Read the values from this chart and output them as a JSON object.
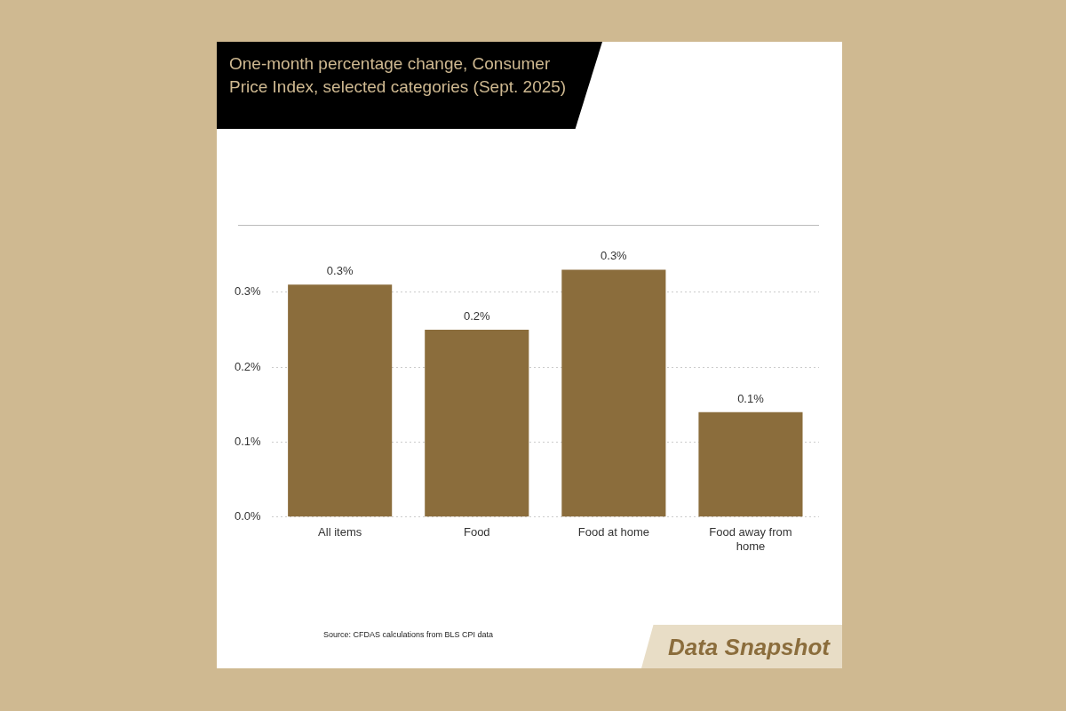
{
  "chart_data": {
    "type": "bar",
    "title": "One-month percentage change, Consumer Price Index, selected categories (Sept. 2025)",
    "categories": [
      "All items",
      "Food",
      "Food at home",
      "Food away from home"
    ],
    "values": [
      0.31,
      0.25,
      0.33,
      0.14
    ],
    "value_labels": [
      "0.3%",
      "0.2%",
      "0.3%",
      "0.1%"
    ],
    "color": "#8b6d3c",
    "ylim": [
      0,
      0.39
    ],
    "yticks": [
      {
        "value": 0,
        "label": "0.0%"
      },
      {
        "value": 0.1,
        "label": "0.1%"
      },
      {
        "value": 0.2,
        "label": "0.2%"
      },
      {
        "value": 0.3,
        "label": "0.3%"
      }
    ],
    "grid": "y",
    "legend": false,
    "annotations": [
      "Source: CFDAS calculations from BLS CPI data",
      "Data Snapshot"
    ]
  }
}
